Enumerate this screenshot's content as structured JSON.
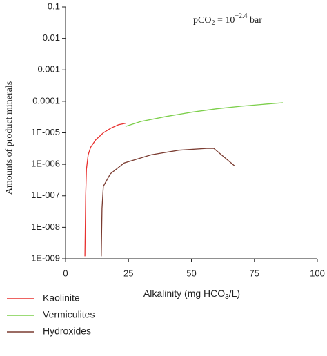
{
  "chart_data": {
    "type": "line",
    "xlabel": {
      "text": "Alkalinity (mg HCO",
      "subscript": "3",
      "suffix": "/L)"
    },
    "ylabel": "Amounts of product minerals",
    "annotation": {
      "prefix": "pCO",
      "subscript": "2",
      "middle": " = 10",
      "superscript": "−2.4",
      "suffix": " bar"
    },
    "xlim": [
      0,
      100
    ],
    "xticks": [
      0,
      25,
      50,
      75,
      100
    ],
    "ylim": [
      1e-09,
      0.1
    ],
    "yscale": "log",
    "yticks": [
      0.1,
      0.01,
      0.001,
      0.0001,
      {
        "value": 1e-05,
        "label": "1E-005"
      },
      {
        "value": 1e-06,
        "label": "1E-006"
      },
      {
        "value": 1e-07,
        "label": "1E-007"
      },
      {
        "value": 1e-08,
        "label": "1E-008"
      },
      {
        "value": 1e-09,
        "label": "1E-009"
      }
    ],
    "legend": "bottom-left",
    "series": [
      {
        "name": "Kaolinite",
        "color": "#e8312f",
        "x": [
          7.7,
          8.0,
          8.3,
          9,
          10,
          12,
          15,
          18,
          21,
          23.8
        ],
        "values": [
          1.2e-09,
          1e-07,
          7e-07,
          2e-06,
          3.5e-06,
          6e-06,
          1e-05,
          1.4e-05,
          1.8e-05,
          2e-05
        ]
      },
      {
        "name": "Vermiculites",
        "color": "#7ccf4a",
        "x": [
          23.8,
          30,
          40,
          50,
          60,
          70,
          80,
          86.3
        ],
        "values": [
          1.6e-05,
          2.3e-05,
          3.3e-05,
          4.5e-05,
          5.8e-05,
          7e-05,
          8.2e-05,
          9e-05
        ]
      },
      {
        "name": "Hydroxides",
        "color": "#7a3b30",
        "x": [
          14.2,
          14.5,
          15,
          17.8,
          23.3,
          34,
          45,
          56,
          58.9,
          67.1
        ],
        "values": [
          1.2e-09,
          4e-08,
          2e-07,
          5e-07,
          1.1e-06,
          2e-06,
          2.8e-06,
          3.2e-06,
          3.2e-06,
          9e-07
        ]
      }
    ]
  }
}
